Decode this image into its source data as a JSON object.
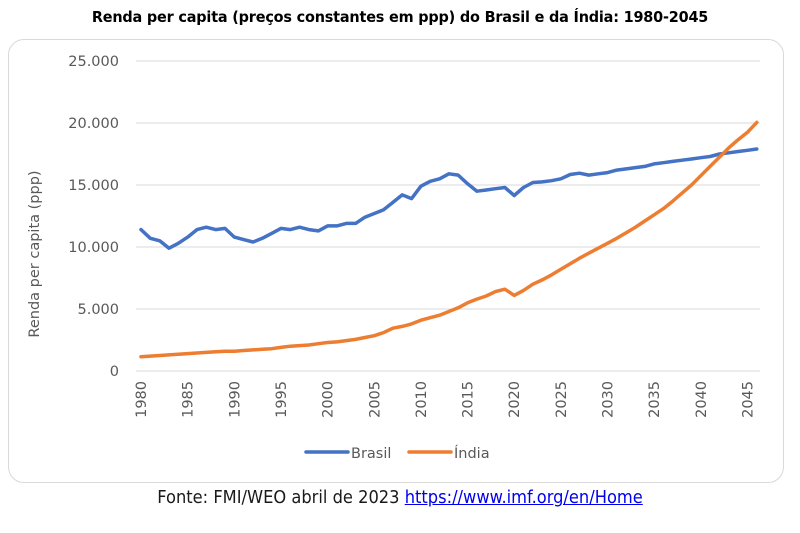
{
  "chart_data": {
    "type": "line",
    "title": "Renda per capita (preços constantes em ppp) do Brasil e da Índia: 1980-2045",
    "xlabel": "",
    "ylabel": "Renda per capita (ppp)",
    "ylim": [
      0,
      25000
    ],
    "xlim": [
      1980,
      2046
    ],
    "grid": true,
    "legend_position": "bottom",
    "yticks": [
      0,
      5000,
      10000,
      15000,
      20000,
      25000
    ],
    "ytick_labels": [
      "0",
      "5.000",
      "10.000",
      "15.000",
      "20.000",
      "25.000"
    ],
    "xticks": [
      1980,
      1985,
      1990,
      1995,
      2000,
      2005,
      2010,
      2015,
      2020,
      2025,
      2030,
      2035,
      2040,
      2045
    ],
    "xtick_labels": [
      "1980",
      "1985",
      "1990",
      "1995",
      "2000",
      "2005",
      "2010",
      "2015",
      "2020",
      "2025",
      "2030",
      "2035",
      "2040",
      "2045"
    ],
    "x": [
      1980,
      1981,
      1982,
      1983,
      1984,
      1985,
      1986,
      1987,
      1988,
      1989,
      1990,
      1991,
      1992,
      1993,
      1994,
      1995,
      1996,
      1997,
      1998,
      1999,
      2000,
      2001,
      2002,
      2003,
      2004,
      2005,
      2006,
      2007,
      2008,
      2009,
      2010,
      2011,
      2012,
      2013,
      2014,
      2015,
      2016,
      2017,
      2018,
      2019,
      2020,
      2021,
      2022,
      2023,
      2024,
      2025,
      2026,
      2027,
      2028,
      2029,
      2030,
      2031,
      2032,
      2033,
      2034,
      2035,
      2036,
      2037,
      2038,
      2039,
      2040,
      2041,
      2042,
      2043,
      2044,
      2045,
      2046
    ],
    "series": [
      {
        "name": "Brasil",
        "color": "#4472c4",
        "values": [
          11400,
          10700,
          10500,
          9900,
          10300,
          10800,
          11400,
          11600,
          11400,
          11500,
          10800,
          10600,
          10400,
          10700,
          11100,
          11500,
          11400,
          11600,
          11400,
          11300,
          11700,
          11700,
          11900,
          11900,
          12400,
          12700,
          13000,
          13600,
          14200,
          13900,
          14900,
          15300,
          15500,
          15900,
          15800,
          15100,
          14500,
          14600,
          14700,
          14800,
          14150,
          14800,
          15200,
          15250,
          15350,
          15500,
          15850,
          15950,
          15800,
          15900,
          16000,
          16200,
          16300,
          16400,
          16500,
          16700,
          16800,
          16900,
          17000,
          17100,
          17200,
          17300,
          17500,
          17600,
          17700,
          17800,
          17900
        ]
      },
      {
        "name": "Índia",
        "color": "#ed7d31",
        "values": [
          1150,
          1200,
          1250,
          1300,
          1350,
          1400,
          1450,
          1500,
          1550,
          1600,
          1600,
          1650,
          1700,
          1750,
          1800,
          1900,
          2000,
          2050,
          2100,
          2200,
          2300,
          2350,
          2450,
          2550,
          2700,
          2850,
          3100,
          3450,
          3600,
          3800,
          4100,
          4300,
          4500,
          4800,
          5100,
          5500,
          5800,
          6050,
          6400,
          6600,
          6100,
          6500,
          7000,
          7350,
          7750,
          8200,
          8650,
          9100,
          9500,
          9900,
          10300,
          10700,
          11150,
          11600,
          12100,
          12600,
          13100,
          13700,
          14350,
          15000,
          15750,
          16500,
          17250,
          18000,
          18650,
          19250,
          20050
        ]
      }
    ]
  },
  "footer": {
    "source_text": "Fonte: FMI/WEO abril de 2023 ",
    "link_text": "https://www.imf.org/en/Home"
  }
}
